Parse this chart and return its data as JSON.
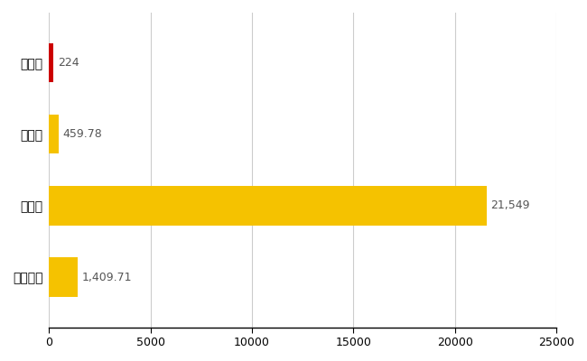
{
  "categories": [
    "余市町",
    "県平均",
    "県最大",
    "全国平均"
  ],
  "values": [
    224,
    459.78,
    21549,
    1409.71
  ],
  "bar_colors": [
    "#cc0000",
    "#f5c200",
    "#f5c200",
    "#f5c200"
  ],
  "value_labels": [
    "224",
    "459.78",
    "21,549",
    "1,409.71"
  ],
  "xlim": [
    0,
    25000
  ],
  "xticks": [
    0,
    5000,
    10000,
    15000,
    20000,
    25000
  ],
  "xtick_labels": [
    "0",
    "5000",
    "10000",
    "15000",
    "20000",
    "25000"
  ],
  "bar_height": 0.55,
  "grid_color": "#cccccc",
  "label_fontsize": 10,
  "tick_fontsize": 9,
  "value_fontsize": 9,
  "value_color": "#555555",
  "bg_color": "#ffffff"
}
